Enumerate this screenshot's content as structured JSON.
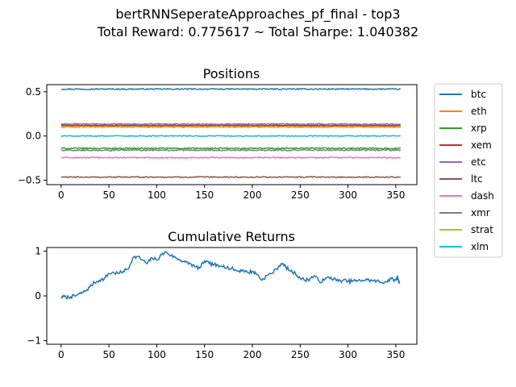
{
  "suptitle": {
    "line1": "bertRNNSeperateApproaches_pf_final - top3",
    "line2": "Total Reward: 0.775617 ~ Total Sharpe: 1.040382"
  },
  "chart_data": [
    {
      "type": "line",
      "title": "Positions",
      "xlabel": "",
      "ylabel": "",
      "xlim": [
        -15,
        372
      ],
      "ylim": [
        -0.55,
        0.58
      ],
      "xticks": [
        0,
        50,
        100,
        150,
        200,
        250,
        300,
        350
      ],
      "yticks": [
        -0.5,
        0.0,
        0.5
      ],
      "ytick_labels": [
        "−0.5",
        "0.0",
        "0.5"
      ],
      "grid": false,
      "legend_position": "outside-right",
      "x_range": [
        0,
        355
      ],
      "series": [
        {
          "name": "btc",
          "color": "#1f77b4",
          "level": 0.53,
          "noise": 0.006
        },
        {
          "name": "eth",
          "color": "#ff7f0e",
          "level": 0.11,
          "noise": 0.006
        },
        {
          "name": "xrp",
          "color": "#2ca02c",
          "level": -0.14,
          "noise": 0.007
        },
        {
          "name": "xem",
          "color": "#d62728",
          "level": 0.12,
          "noise": 0.006
        },
        {
          "name": "etc",
          "color": "#9467bd",
          "level": 0.135,
          "noise": 0.006
        },
        {
          "name": "ltc",
          "color": "#8c564b",
          "level": -0.465,
          "noise": 0.006
        },
        {
          "name": "dash",
          "color": "#e377c2",
          "level": -0.245,
          "noise": 0.006
        },
        {
          "name": "xmr",
          "color": "#7f7f7f",
          "level": -0.16,
          "noise": 0.007
        },
        {
          "name": "strat",
          "color": "#bcbd22",
          "level": 0.1,
          "noise": 0.006
        },
        {
          "name": "xlm",
          "color": "#17becf",
          "level": 0.0,
          "noise": 0.005
        }
      ]
    },
    {
      "type": "line",
      "title": "Cumulative Returns",
      "xlabel": "",
      "ylabel": "",
      "xlim": [
        -15,
        372
      ],
      "ylim": [
        -1.08,
        1.08
      ],
      "xticks": [
        0,
        50,
        100,
        150,
        200,
        250,
        300,
        350
      ],
      "yticks": [
        -1,
        0,
        1
      ],
      "ytick_labels": [
        "−1",
        "0",
        "1"
      ],
      "grid": false,
      "series": [
        {
          "name": "",
          "color": "#1f77b4",
          "x": [
            0,
            5,
            10,
            15,
            20,
            25,
            30,
            35,
            40,
            45,
            50,
            55,
            60,
            65,
            70,
            75,
            80,
            85,
            90,
            95,
            100,
            105,
            110,
            115,
            120,
            125,
            130,
            135,
            140,
            145,
            150,
            155,
            160,
            165,
            170,
            175,
            180,
            185,
            190,
            195,
            200,
            205,
            210,
            215,
            220,
            225,
            230,
            235,
            240,
            245,
            250,
            255,
            260,
            265,
            270,
            275,
            280,
            285,
            290,
            295,
            300,
            305,
            310,
            315,
            320,
            325,
            330,
            335,
            340,
            345,
            350,
            352,
            354
          ],
          "y": [
            -0.02,
            -0.03,
            -0.02,
            0.0,
            0.05,
            0.1,
            0.2,
            0.3,
            0.35,
            0.38,
            0.5,
            0.52,
            0.5,
            0.55,
            0.6,
            0.85,
            0.88,
            0.8,
            0.72,
            0.85,
            0.8,
            0.92,
            0.98,
            0.9,
            0.85,
            0.8,
            0.75,
            0.72,
            0.65,
            0.62,
            0.78,
            0.72,
            0.7,
            0.65,
            0.68,
            0.62,
            0.6,
            0.55,
            0.58,
            0.52,
            0.55,
            0.48,
            0.35,
            0.45,
            0.5,
            0.6,
            0.72,
            0.65,
            0.55,
            0.5,
            0.4,
            0.35,
            0.38,
            0.45,
            0.32,
            0.35,
            0.42,
            0.38,
            0.33,
            0.35,
            0.32,
            0.34,
            0.33,
            0.35,
            0.36,
            0.34,
            0.33,
            0.3,
            0.32,
            0.38,
            0.35,
            0.42,
            0.27
          ]
        }
      ]
    }
  ]
}
